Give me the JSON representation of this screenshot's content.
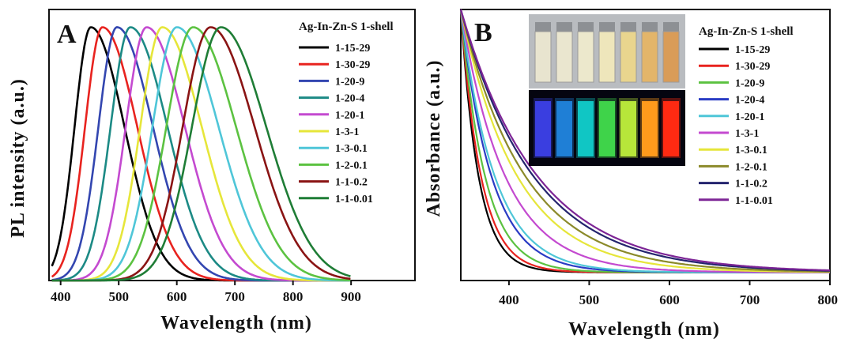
{
  "chart_data": [
    {
      "type": "line",
      "panel_label": "A",
      "xlabel": "Wavelength  (nm)",
      "ylabel": "PL intensity (a.u.)",
      "xlim": [
        380,
        1010
      ],
      "ylim": [
        0,
        1.07
      ],
      "xticks": [
        400,
        500,
        600,
        700,
        800,
        900
      ],
      "xticklabels": [
        "400",
        "500",
        "600",
        "700",
        "800",
        "900"
      ],
      "yticks_shown": false,
      "legend_title": "Ag-In-Zn-S  1-shell",
      "legend_placement": "top-right",
      "grid": false,
      "series": [
        {
          "name": "1-15-29",
          "color": "#000000",
          "peak": 452,
          "left_width": 28,
          "right_width": 58,
          "xmin": 385,
          "xmax": 900
        },
        {
          "name": "1-30-29",
          "color": "#e8231f",
          "peak": 472,
          "left_width": 30,
          "right_width": 60,
          "xmin": 385,
          "xmax": 900
        },
        {
          "name": "1-20-9",
          "color": "#3346b0",
          "peak": 497,
          "left_width": 32,
          "right_width": 62,
          "xmin": 385,
          "xmax": 900
        },
        {
          "name": "1-20-4",
          "color": "#1c8a85",
          "peak": 520,
          "left_width": 34,
          "right_width": 64,
          "xmin": 385,
          "xmax": 900
        },
        {
          "name": "1-20-1",
          "color": "#c44ad0",
          "peak": 548,
          "left_width": 36,
          "right_width": 66,
          "xmin": 385,
          "xmax": 900
        },
        {
          "name": "1-3-1",
          "color": "#e6e63a",
          "peak": 575,
          "left_width": 38,
          "right_width": 68,
          "xmin": 385,
          "xmax": 900
        },
        {
          "name": "1-3-0.1",
          "color": "#4fc6d8",
          "peak": 600,
          "left_width": 42,
          "right_width": 72,
          "xmin": 385,
          "xmax": 900
        },
        {
          "name": "1-2-0.1",
          "color": "#5cc241",
          "peak": 628,
          "left_width": 46,
          "right_width": 74,
          "xmin": 385,
          "xmax": 900
        },
        {
          "name": "1-1-0.2",
          "color": "#8a1414",
          "peak": 658,
          "left_width": 48,
          "right_width": 76,
          "xmin": 385,
          "xmax": 900
        },
        {
          "name": "1-1-0.01",
          "color": "#1f7d36",
          "peak": 676,
          "left_width": 50,
          "right_width": 78,
          "xmin": 385,
          "xmax": 900
        }
      ]
    },
    {
      "type": "line",
      "panel_label": "B",
      "xlabel": "Wavelength  (nm)",
      "ylabel": "Absorbance (a.u.)",
      "xlim": [
        340,
        800
      ],
      "ylim": [
        0,
        1.0
      ],
      "xticks": [
        400,
        500,
        600,
        700,
        800
      ],
      "xticklabels": [
        "400",
        "500",
        "600",
        "700",
        "800"
      ],
      "yticks_shown": false,
      "legend_title": "Ag-In-Zn-S  1-shell",
      "legend_placement": "right",
      "grid": false,
      "inset": {
        "type": "photo",
        "content": "vials under room light and UV light",
        "vial_colors_daylight": [
          "#e8e4cf",
          "#eae6cf",
          "#ece8cc",
          "#eee6bb",
          "#e9d58e",
          "#e3b56a",
          "#d99c58"
        ],
        "vial_colors_uv": [
          "#3a3ee0",
          "#1f7fd6",
          "#10c6c4",
          "#3fd34a",
          "#b7e63a",
          "#ff9a1c",
          "#ff2a12"
        ]
      },
      "series": [
        {
          "name": "1-15-29",
          "color": "#000000",
          "decay": 22
        },
        {
          "name": "1-30-29",
          "color": "#e8231f",
          "decay": 25
        },
        {
          "name": "1-20-9",
          "color": "#5cc241",
          "decay": 30
        },
        {
          "name": "1-20-4",
          "color": "#2a3cc4",
          "decay": 38
        },
        {
          "name": "1-20-1",
          "color": "#4fc6d8",
          "decay": 42
        },
        {
          "name": "1-3-1",
          "color": "#c44ad0",
          "decay": 55
        },
        {
          "name": "1-3-0.1",
          "color": "#e6e63a",
          "decay": 70
        },
        {
          "name": "1-2-0.1",
          "color": "#8b8a2a",
          "decay": 80
        },
        {
          "name": "1-1-0.2",
          "color": "#24246e",
          "decay": 90
        },
        {
          "name": "1-1-0.01",
          "color": "#7d2596",
          "decay": 95
        }
      ]
    }
  ]
}
